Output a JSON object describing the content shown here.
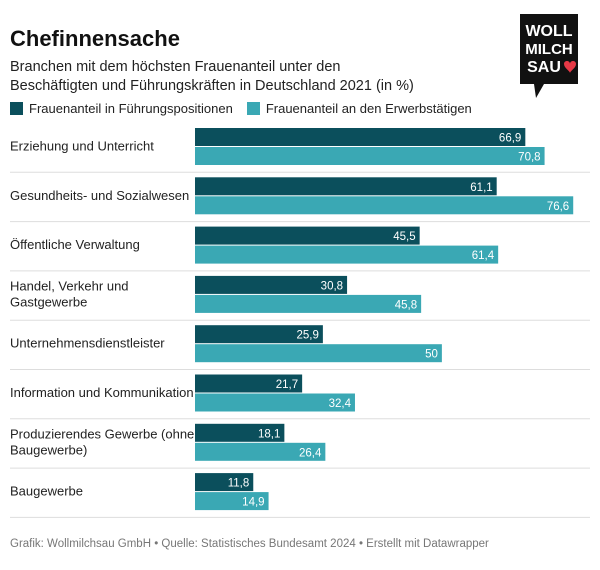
{
  "title": "Chefinnensache",
  "subtitle": "Branchen mit dem höchsten Frauenanteil unter den Beschäftigten und Führungskräften in Deutschland 2021 (in %)",
  "footer": "Grafik: Wollmilchsau GmbH • Quelle: Statistisches Bundesamt 2024 • Erstellt mit Datawrapper",
  "logo": {
    "line1": "WOLL",
    "line2": "MILCH",
    "line3": "SAU",
    "icon": "heart-icon"
  },
  "colors": {
    "fuehrung": "#0b4f5c",
    "erwerb": "#3aa8b4",
    "logo_bg": "#111111",
    "heart": "#e63946"
  },
  "chart_data": {
    "type": "bar",
    "orientation": "horizontal",
    "title": "Chefinnensache",
    "xlabel": "",
    "ylabel": "",
    "xlim": [
      0,
      80
    ],
    "categories": [
      "Erziehung und Unterricht",
      "Gesundheits- und Sozialwesen",
      "Öffentliche Verwaltung",
      "Handel, Verkehr und Gastgewerbe",
      "Unternehmensdienstleister",
      "Information und Kommunikation",
      "Produzierendes Gewerbe (ohne Baugewerbe)",
      "Baugewerbe"
    ],
    "series": [
      {
        "name": "Frauenanteil in Führungspositionen",
        "values": [
          66.9,
          61.1,
          45.5,
          30.8,
          25.9,
          21.7,
          18.1,
          11.8
        ],
        "labels": [
          "66,9",
          "61,1",
          "45,5",
          "30,8",
          "25,9",
          "21,7",
          "18,1",
          "11,8"
        ]
      },
      {
        "name": "Frauenanteil an den Erwerbstätigen",
        "values": [
          70.8,
          76.6,
          61.4,
          45.8,
          50,
          32.4,
          26.4,
          14.9
        ],
        "labels": [
          "70,8",
          "76,6",
          "61,4",
          "45,8",
          "50",
          "32,4",
          "26,4",
          "14,9"
        ]
      }
    ]
  }
}
